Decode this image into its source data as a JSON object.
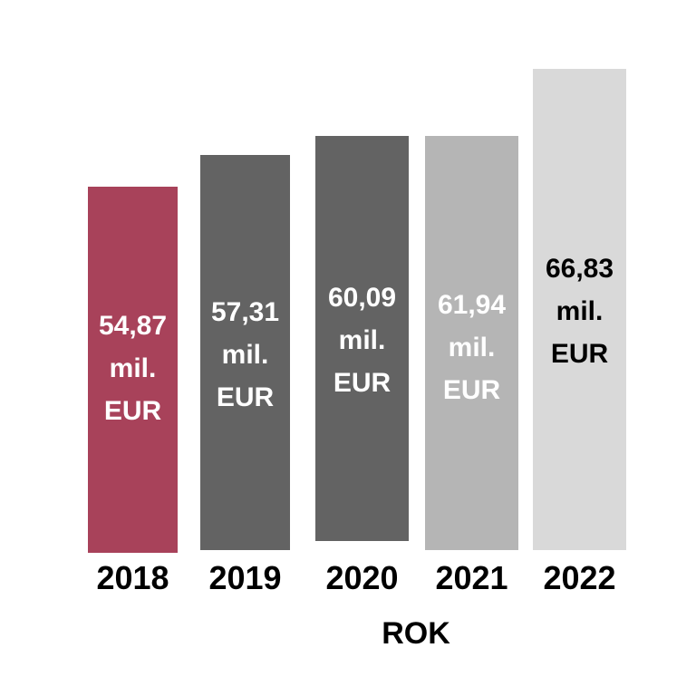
{
  "chart_data": {
    "type": "bar",
    "xlabel": "ROK",
    "categories": [
      "2018",
      "2019",
      "2020",
      "2021",
      "2022"
    ],
    "values": [
      54.87,
      57.31,
      60.09,
      61.94,
      66.83
    ],
    "value_labels": [
      [
        "54,87",
        "mil.",
        "EUR"
      ],
      [
        "57,31",
        "mil.",
        "EUR"
      ],
      [
        "60,09",
        "mil.",
        "EUR"
      ],
      [
        "61,94",
        "mil.",
        "EUR"
      ],
      [
        "66,83",
        "mil.",
        "EUR"
      ]
    ],
    "colors": [
      "#a8425a",
      "#636363",
      "#636363",
      "#b5b5b5",
      "#d9d9d9"
    ],
    "label_colors": [
      "#ffffff",
      "#ffffff",
      "#ffffff",
      "#ffffff",
      "#000000"
    ],
    "grid": false,
    "legend": "none"
  }
}
